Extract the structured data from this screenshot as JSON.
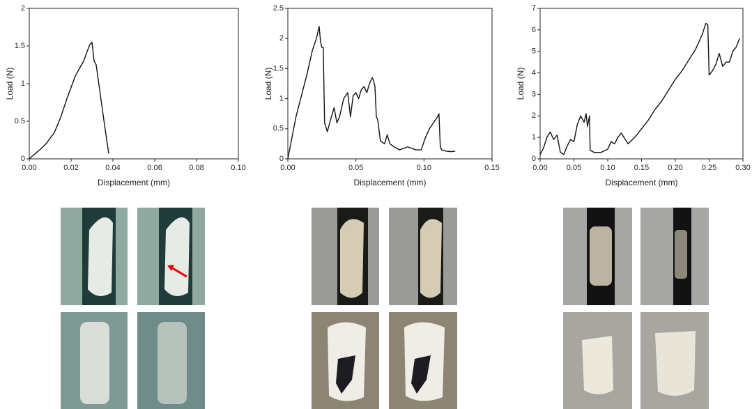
{
  "chart_data": [
    {
      "type": "line",
      "xlabel": "Displacement (mm)",
      "ylabel": "Load (N)",
      "color": "#111111",
      "xlim": [
        0,
        0.1
      ],
      "ylim": [
        0,
        2
      ],
      "xticks": [
        {
          "value": 0,
          "label": "0.00"
        },
        {
          "value": 0.02,
          "label": "0.02"
        },
        {
          "value": 0.04,
          "label": "0.04"
        },
        {
          "value": 0.06,
          "label": "0.06"
        },
        {
          "value": 0.08,
          "label": "0.08"
        },
        {
          "value": 0.1,
          "label": "0.10"
        }
      ],
      "yticks": [
        0,
        0.5,
        1,
        1.5,
        2
      ],
      "x": [
        0,
        0.002,
        0.005,
        0.008,
        0.012,
        0.015,
        0.018,
        0.02,
        0.022,
        0.024,
        0.026,
        0.028,
        0.029,
        0.03,
        0.031,
        0.032,
        0.034,
        0.036,
        0.038
      ],
      "values": [
        0,
        0.05,
        0.12,
        0.2,
        0.35,
        0.55,
        0.8,
        0.95,
        1.1,
        1.2,
        1.3,
        1.45,
        1.52,
        1.55,
        1.3,
        1.25,
        0.85,
        0.45,
        0.07
      ]
    },
    {
      "type": "line",
      "xlabel": "Displacement (mm)",
      "ylabel": "Load (N)",
      "color": "#111111",
      "xlim": [
        0,
        0.15
      ],
      "ylim": [
        0,
        2.5
      ],
      "xticks": [
        {
          "value": 0,
          "label": "0.00"
        },
        {
          "value": 0.05,
          "label": "0.05"
        },
        {
          "value": 0.1,
          "label": "0.10"
        },
        {
          "value": 0.15,
          "label": "0.15"
        }
      ],
      "yticks": [
        0,
        0.5,
        1,
        1.5,
        2,
        2.5
      ],
      "x": [
        0,
        0.003,
        0.006,
        0.01,
        0.014,
        0.018,
        0.021,
        0.023,
        0.024,
        0.025,
        0.026,
        0.027,
        0.029,
        0.032,
        0.034,
        0.036,
        0.038,
        0.041,
        0.044,
        0.046,
        0.048,
        0.05,
        0.052,
        0.054,
        0.056,
        0.058,
        0.06,
        0.062,
        0.063,
        0.064,
        0.065,
        0.066,
        0.068,
        0.071,
        0.073,
        0.075,
        0.078,
        0.082,
        0.088,
        0.094,
        0.098,
        0.101,
        0.104,
        0.107,
        0.11,
        0.111,
        0.112,
        0.113,
        0.116,
        0.12,
        0.123
      ],
      "values": [
        0,
        0.35,
        0.7,
        1.05,
        1.4,
        1.8,
        2.0,
        2.2,
        1.95,
        1.85,
        1.85,
        0.6,
        0.45,
        0.7,
        0.85,
        0.6,
        0.7,
        1.0,
        1.1,
        0.7,
        1.05,
        1.1,
        1.0,
        1.15,
        1.2,
        1.1,
        1.25,
        1.35,
        1.3,
        1.2,
        0.7,
        0.65,
        0.3,
        0.25,
        0.4,
        0.25,
        0.2,
        0.15,
        0.2,
        0.15,
        0.15,
        0.35,
        0.5,
        0.6,
        0.7,
        0.75,
        0.2,
        0.15,
        0.13,
        0.12,
        0.13
      ]
    },
    {
      "type": "line",
      "xlabel": "Displacement (mm)",
      "ylabel": "Load (N)",
      "color": "#111111",
      "xlim": [
        0,
        0.3
      ],
      "ylim": [
        0,
        7
      ],
      "xticks": [
        {
          "value": 0,
          "label": "0.00"
        },
        {
          "value": 0.05,
          "label": "0.05"
        },
        {
          "value": 0.1,
          "label": "0.10"
        },
        {
          "value": 0.15,
          "label": "0.15"
        },
        {
          "value": 0.2,
          "label": "0.20"
        },
        {
          "value": 0.25,
          "label": "0.25"
        },
        {
          "value": 0.3,
          "label": "0.30"
        }
      ],
      "yticks": [
        0,
        1,
        2,
        3,
        4,
        5,
        6,
        7
      ],
      "x": [
        0,
        0.005,
        0.01,
        0.015,
        0.02,
        0.025,
        0.03,
        0.035,
        0.04,
        0.045,
        0.05,
        0.055,
        0.06,
        0.065,
        0.068,
        0.07,
        0.073,
        0.074,
        0.08,
        0.09,
        0.1,
        0.105,
        0.11,
        0.115,
        0.12,
        0.13,
        0.14,
        0.15,
        0.16,
        0.17,
        0.18,
        0.19,
        0.2,
        0.21,
        0.22,
        0.23,
        0.24,
        0.245,
        0.248,
        0.25,
        0.255,
        0.26,
        0.265,
        0.27,
        0.275,
        0.28,
        0.285,
        0.29,
        0.295
      ],
      "values": [
        0.2,
        0.5,
        1.0,
        1.25,
        0.9,
        1.1,
        0.3,
        0.2,
        0.6,
        0.9,
        0.8,
        1.6,
        2.0,
        1.7,
        2.1,
        1.5,
        2.0,
        0.4,
        0.3,
        0.3,
        0.45,
        0.8,
        0.7,
        1.0,
        1.2,
        0.7,
        1.0,
        1.4,
        1.8,
        2.3,
        2.7,
        3.2,
        3.7,
        4.1,
        4.6,
        5.1,
        5.8,
        6.3,
        6.25,
        3.9,
        4.1,
        4.4,
        4.9,
        4.3,
        4.5,
        4.5,
        5.0,
        5.2,
        5.6
      ]
    }
  ]
}
